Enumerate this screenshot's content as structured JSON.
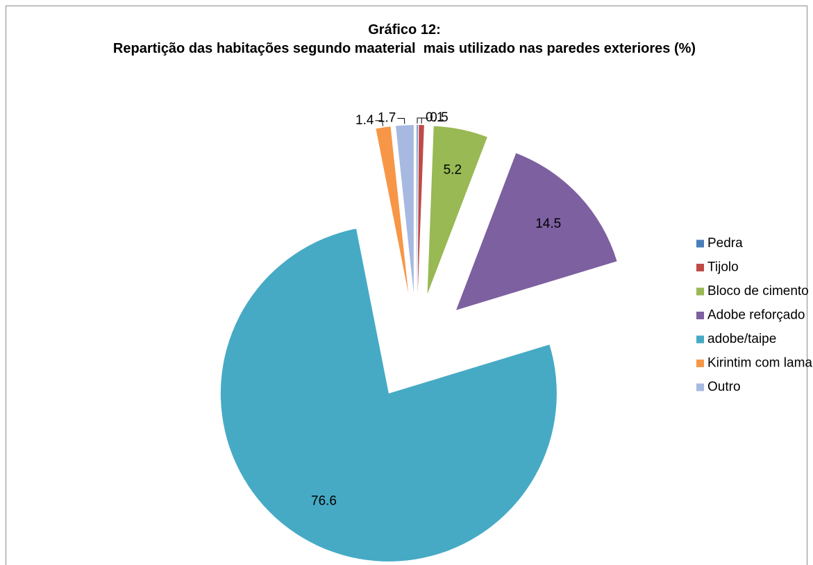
{
  "chart_data": {
    "type": "pie",
    "title": "Gráfico 12:",
    "subtitle": "Repartição das habitações segundo maaterial  mais utilizado nas paredes exteriores (%)",
    "categories": [
      "Pedra",
      "Tijolo",
      "Bloco de cimento",
      "Adobe reforçado",
      "adobe/taipe",
      "Kirintim com lama",
      "Outro"
    ],
    "values": [
      0.1,
      0.5,
      5.2,
      14.5,
      76.6,
      1.4,
      1.7
    ],
    "colors": [
      "#4a7ebb",
      "#be4b48",
      "#98b954",
      "#7d60a0",
      "#46aac5",
      "#f79646",
      "#a7b9e1"
    ],
    "legend": "right"
  }
}
